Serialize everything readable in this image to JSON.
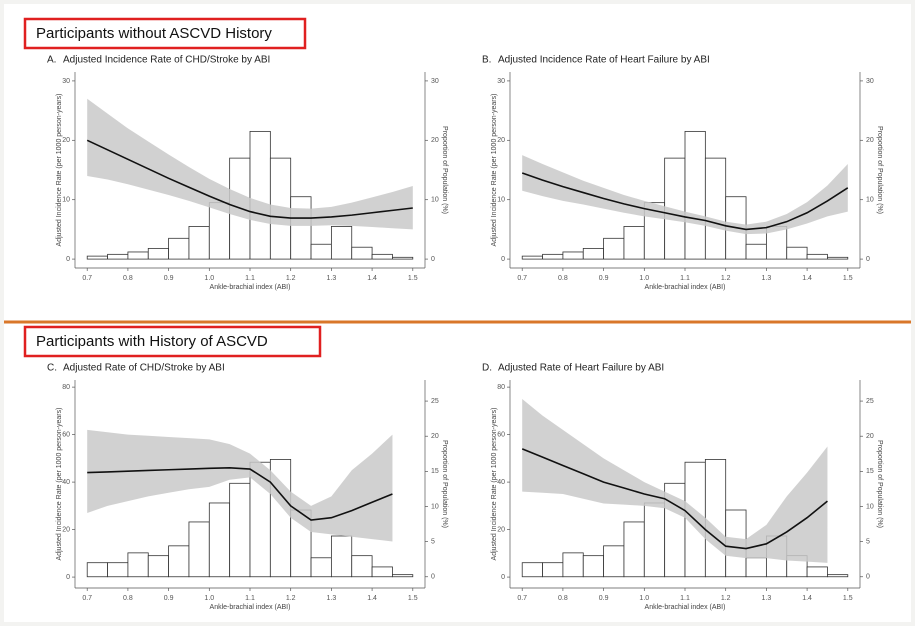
{
  "headers": [
    "Participants without ASCVD History",
    "Participants with History of ASCVD"
  ],
  "chart_data": [
    {
      "type": "line",
      "panel_label": "A.",
      "title": "Adjusted Incidence Rate of CHD/Stroke by ABI",
      "y_label": "Adjusted Incidence Rate (per 1000 person-years)",
      "y2_label": "Proportion of Population (%)",
      "x_label": "Ankle-brachial index (ABI)",
      "xlim": [
        0.67,
        1.53
      ],
      "xticks": [
        0.7,
        0.8,
        0.9,
        {
          "value": 1,
          "label": "1.0"
        },
        1.1,
        1.2,
        1.3,
        1.4,
        1.5
      ],
      "ylim": [
        -1.5,
        31.5
      ],
      "yticks": [
        0,
        10,
        20,
        30
      ],
      "y2lim": [
        -1.5,
        31.5
      ],
      "y2ticks": [
        0,
        10,
        20,
        30
      ],
      "bins": [
        0.7,
        0.75,
        0.8,
        0.85,
        0.9,
        0.95,
        1,
        1.05,
        1.1,
        1.15,
        1.2,
        1.25,
        1.3,
        1.35,
        1.4,
        1.45,
        1.5
      ],
      "x": [
        0.7,
        0.75,
        0.8,
        0.85,
        0.9,
        0.95,
        1,
        1.05,
        1.1,
        1.15,
        1.2,
        1.25,
        1.3,
        1.35,
        1.4,
        1.45,
        1.5
      ],
      "series": [
        {
          "type": "histogram",
          "axis": "y2",
          "color": "#ffffff",
          "values": [
            0.5,
            0.8,
            1.2,
            1.8,
            3.5,
            5.5,
            9.5,
            17,
            21.5,
            17,
            10.5,
            2.5,
            5.5,
            2,
            0.8,
            0.3
          ]
        },
        {
          "type": "line",
          "color": "#111111",
          "band_color": "#c9c9c9",
          "values": [
            20,
            18.4,
            16.8,
            15.2,
            13.6,
            12.1,
            10.6,
            9.2,
            8,
            7.2,
            6.9,
            6.9,
            7.1,
            7.4,
            7.8,
            8.2,
            8.6
          ],
          "upper": [
            27,
            24.5,
            22,
            19.8,
            17.6,
            15.5,
            13.5,
            11.8,
            10.3,
            9.2,
            8.6,
            8.5,
            8.8,
            9.5,
            10.4,
            11.3,
            12.3
          ],
          "lower": [
            14,
            13.4,
            12.6,
            11.7,
            10.8,
            9.8,
            8.7,
            7.6,
            6.6,
            5.9,
            5.6,
            5.6,
            5.7,
            5.6,
            5.4,
            5.2,
            5
          ]
        }
      ]
    },
    {
      "type": "line",
      "panel_label": "B.",
      "title": "Adjusted Incidence Rate of Heart Failure by ABI",
      "y_label": "Adjusted Incidence Rate (per 1000 person-years)",
      "y2_label": "Proportion of Population (%)",
      "x_label": "Ankle-brachial index (ABI)",
      "xlim": [
        0.67,
        1.53
      ],
      "xticks": [
        0.7,
        0.8,
        0.9,
        {
          "value": 1,
          "label": "1.0"
        },
        1.1,
        1.2,
        1.3,
        1.4,
        1.5
      ],
      "ylim": [
        -1.5,
        31.5
      ],
      "yticks": [
        0,
        10,
        20,
        30
      ],
      "y2lim": [
        -1.5,
        31.5
      ],
      "y2ticks": [
        0,
        10,
        20,
        30
      ],
      "bins": [
        0.7,
        0.75,
        0.8,
        0.85,
        0.9,
        0.95,
        1,
        1.05,
        1.1,
        1.15,
        1.2,
        1.25,
        1.3,
        1.35,
        1.4,
        1.45,
        1.5
      ],
      "x": [
        0.7,
        0.75,
        0.8,
        0.85,
        0.9,
        0.95,
        1,
        1.05,
        1.1,
        1.15,
        1.2,
        1.25,
        1.3,
        1.35,
        1.4,
        1.45,
        1.5
      ],
      "series": [
        {
          "type": "histogram",
          "axis": "y2",
          "color": "#ffffff",
          "values": [
            0.5,
            0.8,
            1.2,
            1.8,
            3.5,
            5.5,
            9.5,
            17,
            21.5,
            17,
            10.5,
            2.5,
            5.5,
            2,
            0.8,
            0.3
          ]
        },
        {
          "type": "line",
          "color": "#111111",
          "band_color": "#c9c9c9",
          "values": [
            14.5,
            13.3,
            12.2,
            11.2,
            10.2,
            9.3,
            8.5,
            7.8,
            7.1,
            6.5,
            5.6,
            5,
            5.3,
            6.3,
            7.8,
            9.8,
            12
          ],
          "upper": [
            17.5,
            16,
            14.6,
            13.2,
            12,
            10.8,
            9.8,
            8.9,
            8,
            7.2,
            6.3,
            5.8,
            6.3,
            7.6,
            9.6,
            12.4,
            16
          ],
          "lower": [
            11.5,
            10.6,
            9.8,
            9.2,
            8.5,
            7.8,
            7.2,
            6.7,
            6.2,
            5.6,
            4.8,
            4.2,
            4.3,
            5,
            6,
            7.2,
            8
          ]
        }
      ]
    },
    {
      "type": "line",
      "panel_label": "C.",
      "title": "Adjusted Rate of CHD/Stroke by ABI",
      "y_label": "Adjusted Incidence Rate (per 1000 person-years)",
      "y2_label": "Proportion of Population (%)",
      "x_label": "Ankle-brachial index (ABI)",
      "xlim": [
        0.67,
        1.53
      ],
      "xticks": [
        0.7,
        0.8,
        0.9,
        {
          "value": 1,
          "label": "1.0"
        },
        1.1,
        1.2,
        1.3,
        1.4,
        1.5
      ],
      "ylim": [
        -4.6,
        83
      ],
      "yticks": [
        0,
        20,
        40,
        60,
        80
      ],
      "y2lim": [
        -1.6,
        28
      ],
      "y2ticks": [
        0,
        5,
        10,
        15,
        20,
        25
      ],
      "bins": [
        0.7,
        0.75,
        0.8,
        0.85,
        0.9,
        0.95,
        1,
        1.05,
        1.1,
        1.15,
        1.2,
        1.25,
        1.3,
        1.35,
        1.4,
        1.45,
        1.5
      ],
      "x": [
        0.7,
        0.75,
        0.8,
        0.85,
        0.9,
        0.95,
        1,
        1.05,
        1.1,
        1.15,
        1.2,
        1.25,
        1.3,
        1.35,
        1.4,
        1.45,
        1.5
      ],
      "series": [
        {
          "type": "histogram",
          "axis": "y2",
          "color": "#ffffff",
          "values": [
            2,
            2,
            3.4,
            3,
            4.4,
            7.8,
            10.5,
            13.3,
            16.3,
            16.7,
            9.5,
            2.7,
            5.8,
            3,
            1.4,
            0.3
          ]
        },
        {
          "type": "line",
          "color": "#111111",
          "band_color": "#c9c9c9",
          "values": [
            44,
            44.3,
            44.6,
            44.9,
            45.2,
            45.5,
            45.8,
            46,
            45.5,
            40,
            30,
            24,
            25,
            28,
            31.5,
            35,
            null
          ],
          "upper": [
            62,
            61,
            60,
            59.5,
            59,
            58.5,
            58,
            56,
            52,
            45,
            36,
            30,
            34,
            45,
            52,
            60,
            null
          ],
          "lower": [
            27,
            30,
            32,
            34,
            35.5,
            37,
            38,
            41,
            42,
            35,
            25,
            19,
            18,
            17,
            16,
            15,
            null
          ]
        }
      ]
    },
    {
      "type": "line",
      "panel_label": "D.",
      "title": "Adjusted Rate of Heart Failure by ABI",
      "y_label": "Adjusted Incidence Rate (per 1000 person-years)",
      "y2_label": "Proportion of Population (%)",
      "x_label": "Ankle-brachial index (ABI)",
      "xlim": [
        0.67,
        1.53
      ],
      "xticks": [
        0.7,
        0.8,
        0.9,
        {
          "value": 1,
          "label": "1.0"
        },
        1.1,
        1.2,
        1.3,
        1.4,
        1.5
      ],
      "ylim": [
        -4.6,
        83
      ],
      "yticks": [
        0,
        20,
        40,
        60,
        80
      ],
      "y2lim": [
        -1.6,
        28
      ],
      "y2ticks": [
        0,
        5,
        10,
        15,
        20,
        25
      ],
      "bins": [
        0.7,
        0.75,
        0.8,
        0.85,
        0.9,
        0.95,
        1,
        1.05,
        1.1,
        1.15,
        1.2,
        1.25,
        1.3,
        1.35,
        1.4,
        1.45,
        1.5
      ],
      "x": [
        0.7,
        0.75,
        0.8,
        0.85,
        0.9,
        0.95,
        1,
        1.05,
        1.1,
        1.15,
        1.2,
        1.25,
        1.3,
        1.35,
        1.4,
        1.45,
        1.5
      ],
      "series": [
        {
          "type": "histogram",
          "axis": "y2",
          "color": "#ffffff",
          "values": [
            2,
            2,
            3.4,
            3,
            4.4,
            7.8,
            10.5,
            13.3,
            16.3,
            16.7,
            9.5,
            2.7,
            5.8,
            3,
            1.4,
            0.3
          ]
        },
        {
          "type": "line",
          "color": "#111111",
          "band_color": "#c9c9c9",
          "values": [
            54,
            50.5,
            47,
            43.5,
            40,
            37.5,
            35,
            33,
            28,
            20,
            13,
            12,
            14,
            19,
            25,
            32,
            null
          ],
          "upper": [
            75,
            68,
            62,
            56,
            50,
            45,
            40,
            36,
            32,
            25,
            17,
            16,
            22,
            34,
            44,
            55,
            null
          ],
          "lower": [
            36,
            35.5,
            35,
            33,
            31,
            30.5,
            30,
            29,
            25,
            16,
            9,
            8,
            8,
            7,
            6.5,
            6,
            null
          ]
        }
      ]
    }
  ]
}
